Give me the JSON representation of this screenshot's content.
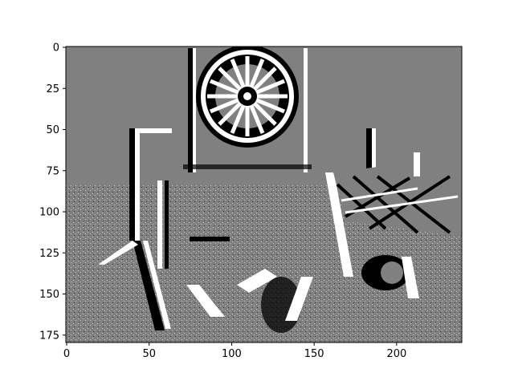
{
  "chart_data": {
    "type": "heatmap",
    "title": "",
    "xlabel": "",
    "ylabel": "",
    "image_width": 240,
    "image_height": 180,
    "xlim": [
      -0.5,
      239.5
    ],
    "ylim": [
      179.5,
      -0.5
    ],
    "y_inverted": true,
    "grid": false,
    "palette": {
      "low": "#000000",
      "mid": "#808080",
      "high": "#ffffff"
    },
    "x_ticks": [
      0,
      50,
      100,
      150,
      200
    ],
    "y_ticks": [
      0,
      25,
      50,
      75,
      100,
      125,
      150,
      175
    ],
    "x_tick_labels": [
      "0",
      "50",
      "100",
      "150",
      "200"
    ],
    "y_tick_labels": [
      "0",
      "25",
      "50",
      "75",
      "100",
      "125",
      "150",
      "175"
    ]
  }
}
